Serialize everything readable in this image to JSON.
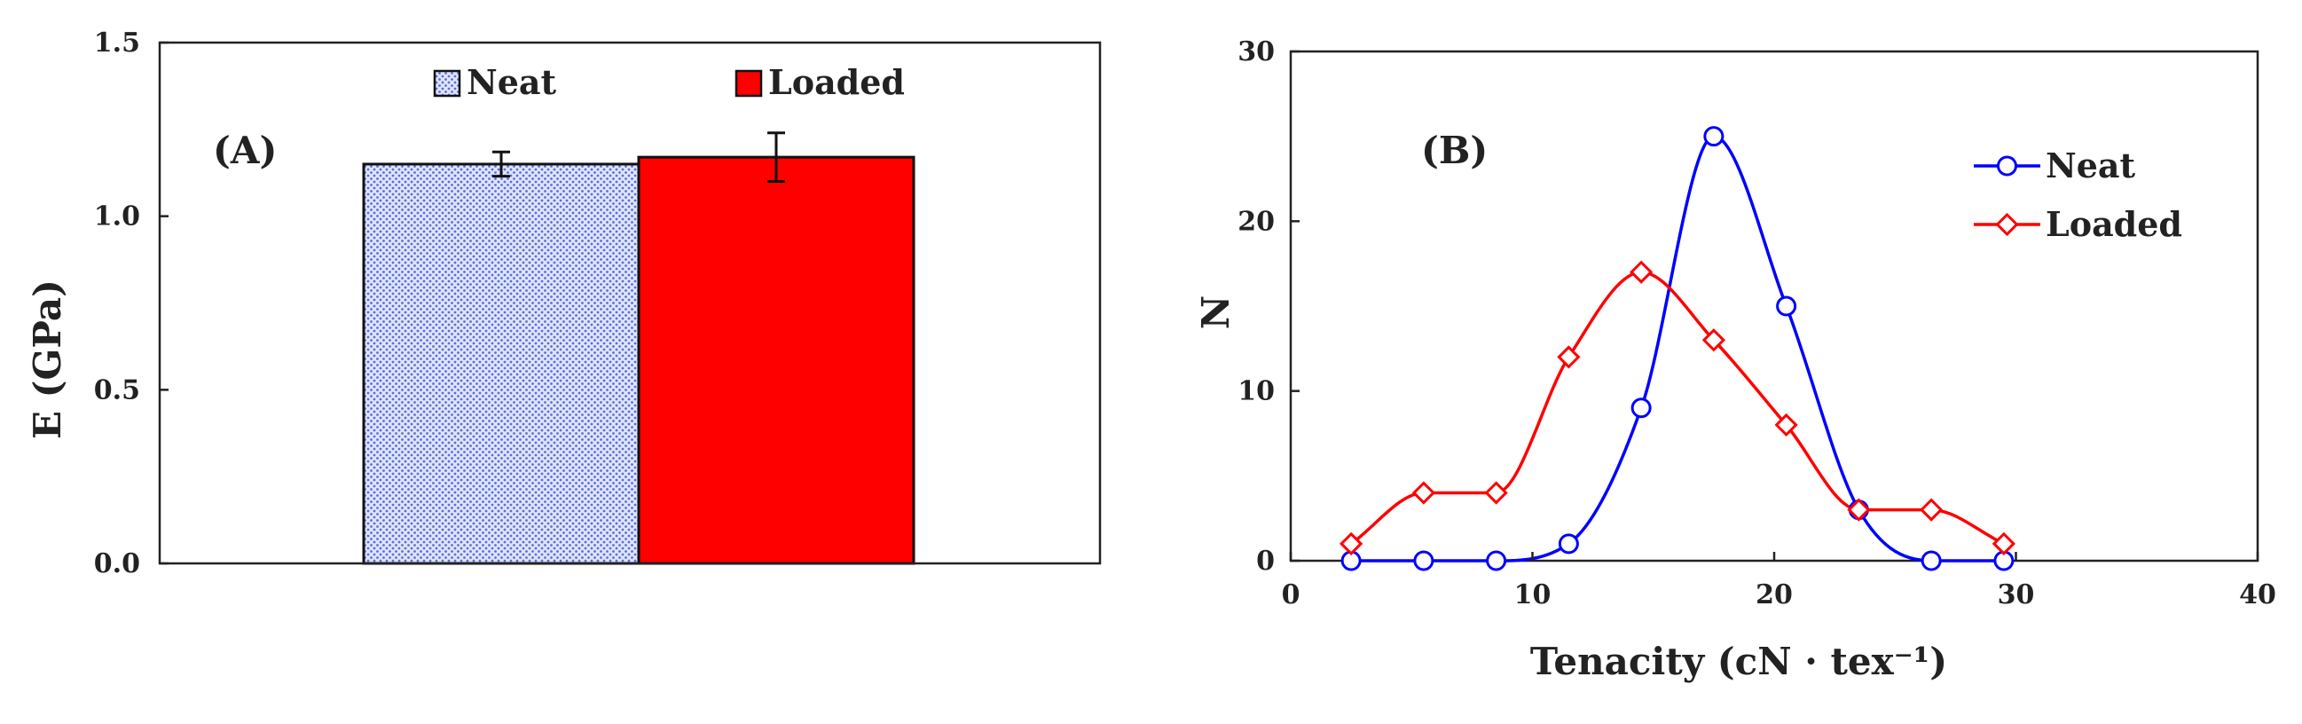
{
  "colors": {
    "neat_bar_fill": "#dfe4ff",
    "neat_bar_dots": "#5a6fd6",
    "loaded_bar_fill": "#ff0000",
    "neat_line": "#0000ff",
    "loaded_line": "#ff0000",
    "axis": "#222222"
  },
  "chart_data": [
    {
      "type": "bar",
      "panel_label": "(A)",
      "ylabel": "E (GPa)",
      "xlabel": "",
      "ylim": [
        0,
        1.5
      ],
      "yticks": [
        "0.0",
        "0.5",
        "1.0",
        "1.5"
      ],
      "grid": false,
      "legend_position": "top",
      "categories": [
        ""
      ],
      "series": [
        {
          "name": "Neat",
          "values": [
            1.15
          ],
          "error": [
            0.035
          ],
          "style": "dotted-pattern"
        },
        {
          "name": "Loaded",
          "values": [
            1.17
          ],
          "error": [
            0.07
          ],
          "style": "solid"
        }
      ]
    },
    {
      "type": "line",
      "panel_label": "(B)",
      "xlabel": "Tenacity (cN · tex⁻¹)",
      "ylabel": "N",
      "xlim": [
        0,
        40
      ],
      "ylim": [
        0,
        30
      ],
      "xticks": [
        "0",
        "10",
        "20",
        "30",
        "40"
      ],
      "yticks": [
        "0",
        "10",
        "20",
        "30"
      ],
      "grid": false,
      "legend_position": "top-right",
      "smooth": true,
      "series": [
        {
          "name": "Neat",
          "marker": "circle",
          "x": [
            2.5,
            5.5,
            8.5,
            11.5,
            14.5,
            17.5,
            20.5,
            23.5,
            26.5,
            29.5
          ],
          "y": [
            0,
            0,
            0,
            1,
            9,
            25,
            15,
            3,
            0,
            0
          ]
        },
        {
          "name": "Loaded",
          "marker": "diamond",
          "x": [
            2.5,
            5.5,
            8.5,
            11.5,
            14.5,
            17.5,
            20.5,
            23.5,
            26.5,
            29.5
          ],
          "y": [
            1,
            4,
            4,
            12,
            17,
            13,
            8,
            3,
            3,
            1
          ]
        }
      ]
    }
  ]
}
